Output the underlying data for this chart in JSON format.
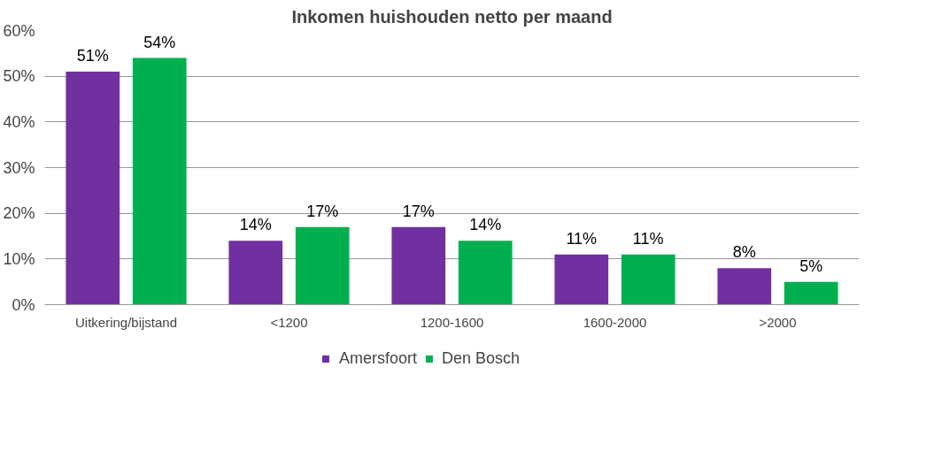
{
  "chart_data": {
    "type": "bar",
    "title": "Inkomen huishouden netto per maand",
    "categories": [
      "Uitkering/bijstand",
      "<1200",
      "1200-1600",
      "1600-2000",
      ">2000"
    ],
    "series": [
      {
        "name": "Amersfoort",
        "color": "#7030a0",
        "values": [
          51,
          14,
          17,
          11,
          8
        ],
        "value_labels": [
          "51%",
          "14%",
          "17%",
          "11%",
          "8%"
        ]
      },
      {
        "name": "Den Bosch",
        "color": "#00b050",
        "values": [
          54,
          17,
          14,
          11,
          5
        ],
        "value_labels": [
          "54%",
          "17%",
          "14%",
          "11%",
          "5%"
        ]
      }
    ],
    "ylim": [
      0,
      60
    ],
    "yticks": [
      {
        "value": 0,
        "label": "0%"
      },
      {
        "value": 10,
        "label": "10%"
      },
      {
        "value": 20,
        "label": "20%"
      },
      {
        "value": 30,
        "label": "30%"
      },
      {
        "value": 40,
        "label": "40%"
      },
      {
        "value": 50,
        "label": "50%"
      },
      {
        "value": 60,
        "label": "60%"
      }
    ],
    "grid": "y",
    "legend": "bottom"
  }
}
